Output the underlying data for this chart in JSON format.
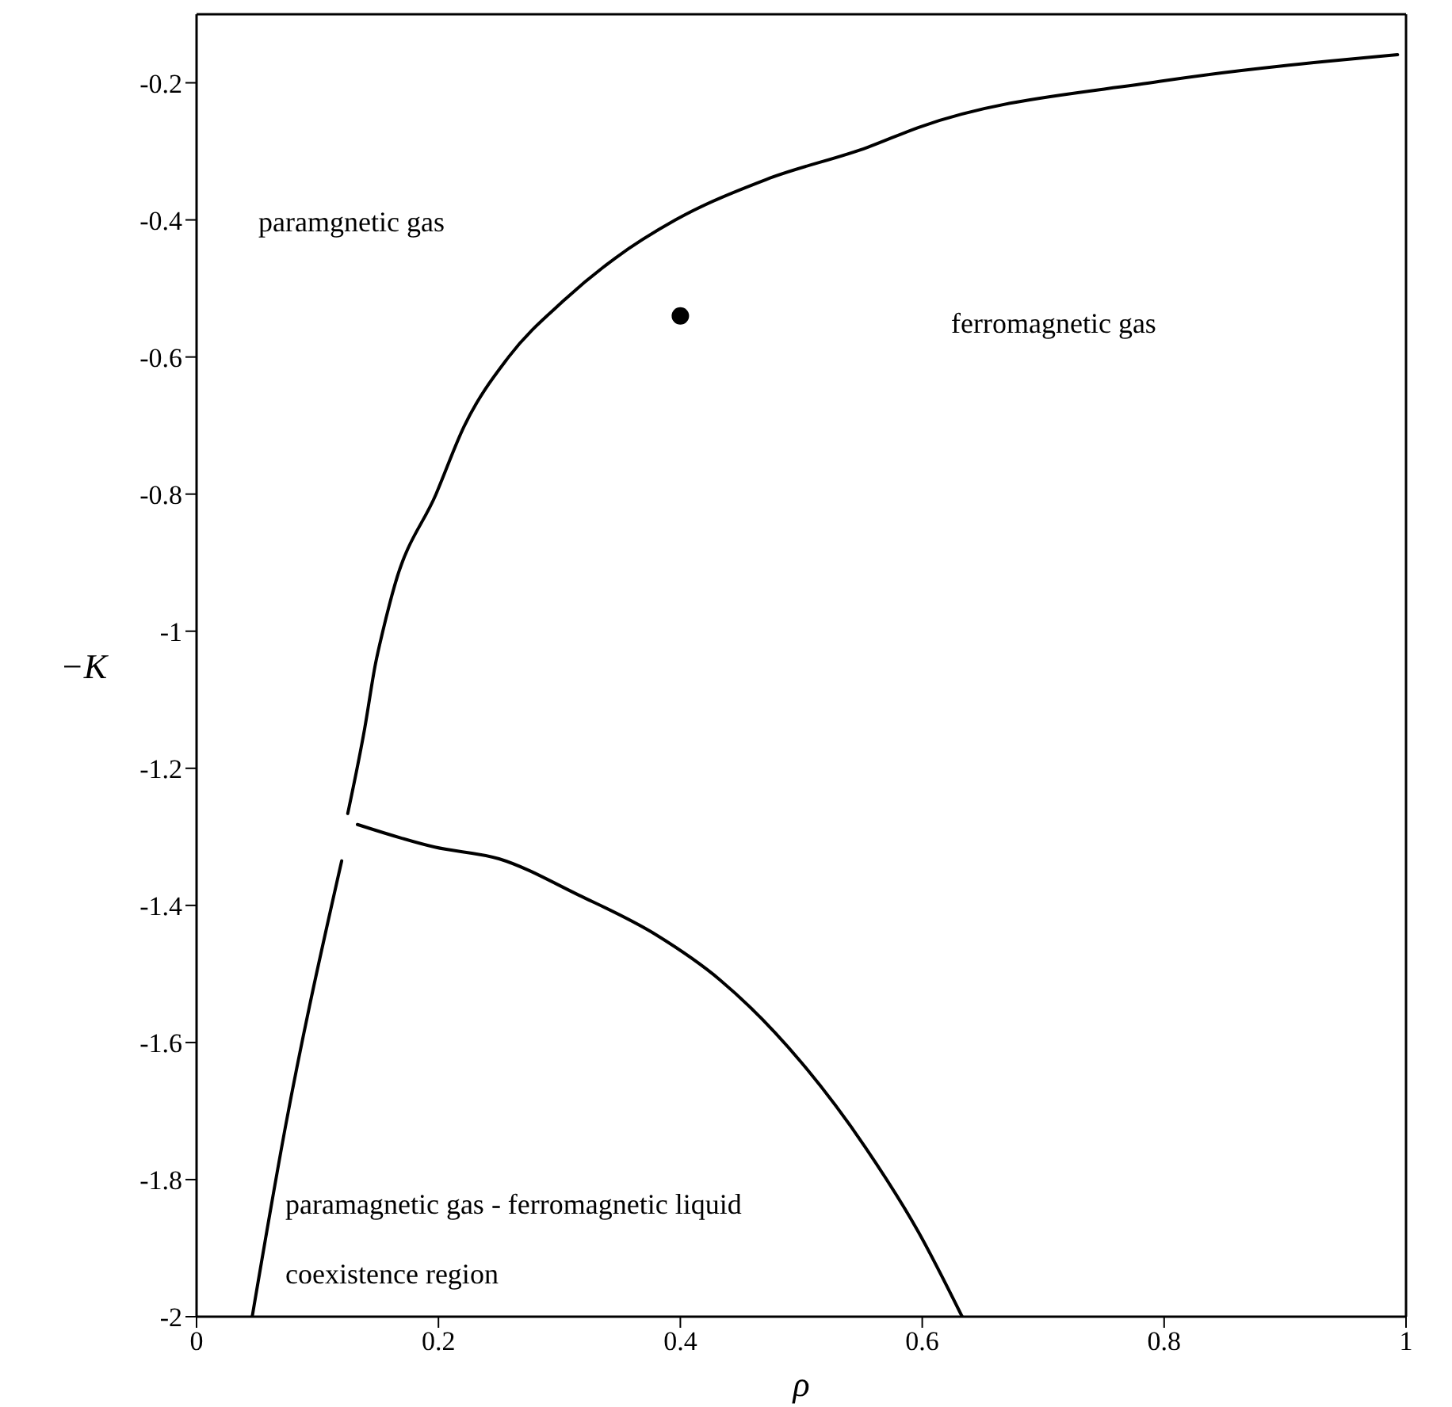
{
  "chart_data": {
    "type": "line",
    "xlabel": "ρ",
    "ylabel": "−K",
    "xlim": [
      0,
      1
    ],
    "ylim": [
      -2,
      -0.1
    ],
    "xticks": [
      0,
      0.2,
      0.4,
      0.6,
      0.8,
      1
    ],
    "yticks": [
      -2,
      -1.8,
      -1.6,
      -1.4,
      -1.2,
      -1,
      -0.8,
      -0.6,
      -0.4,
      -0.2
    ],
    "grid": false,
    "marker": "none",
    "line_style": "solid",
    "series": [
      {
        "color": "#000000",
        "x": [
          0.125,
          0.139,
          0.148,
          0.154,
          0.164,
          0.198,
          0.221,
          0.258,
          0.304,
          0.346,
          0.396,
          0.471,
          0.555,
          0.597,
          0.796,
          0.993
        ],
        "values": [
          -1.266,
          -1.142,
          -1.047,
          -1.0,
          -0.932,
          -0.8,
          -0.702,
          -0.6,
          -0.517,
          -0.456,
          -0.4,
          -0.341,
          -0.294,
          -0.265,
          -0.198,
          -0.159
        ]
      },
      {
        "color": "#000000",
        "x": [
          0.046,
          0.074,
          0.12
        ],
        "values": [
          -2.0,
          -1.718,
          -1.335
        ]
      },
      {
        "color": "#000000",
        "x": [
          0.133,
          0.197,
          0.25,
          0.316,
          0.38,
          0.433,
          0.5,
          0.553,
          0.597,
          0.633
        ],
        "values": [
          -1.282,
          -1.315,
          -1.332,
          -1.385,
          -1.443,
          -1.509,
          -1.629,
          -1.753,
          -1.877,
          -2.0
        ]
      },
      {
        "type": "scatter",
        "color": "#000000",
        "marker": "circle",
        "x": [
          0.4
        ],
        "values": [
          -0.54
        ]
      }
    ],
    "annotations": [
      "paramgnetic gas",
      "ferromagnetic gas",
      "paramagnetic gas - ferromagnetic liquid",
      "coexistence region"
    ]
  }
}
